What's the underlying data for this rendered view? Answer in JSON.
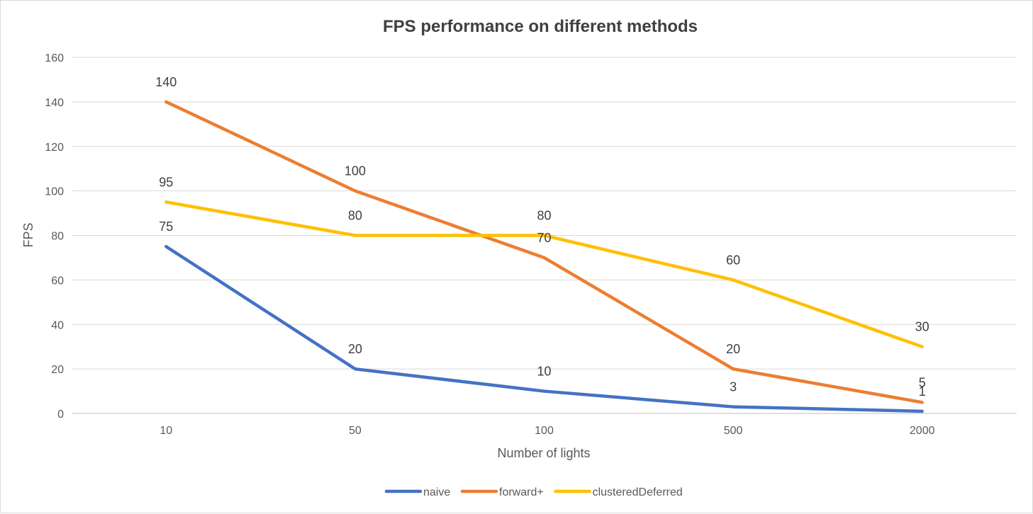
{
  "chart_data": {
    "type": "line",
    "title": "FPS performance on different methods",
    "xlabel": "Number of lights",
    "ylabel": "FPS",
    "categories": [
      "10",
      "50",
      "100",
      "500",
      "2000"
    ],
    "ylim": [
      0,
      160
    ],
    "yticks": [
      0,
      20,
      40,
      60,
      80,
      100,
      120,
      140,
      160
    ],
    "grid": true,
    "legend_position": "bottom",
    "series": [
      {
        "name": "naive",
        "color": "#4472C4",
        "values": [
          75,
          20,
          10,
          3,
          1
        ]
      },
      {
        "name": "forward+",
        "color": "#ED7D31",
        "values": [
          140,
          100,
          70,
          20,
          5
        ]
      },
      {
        "name": "clusteredDeferred",
        "color": "#FFC000",
        "values": [
          95,
          80,
          80,
          60,
          30
        ]
      }
    ]
  }
}
